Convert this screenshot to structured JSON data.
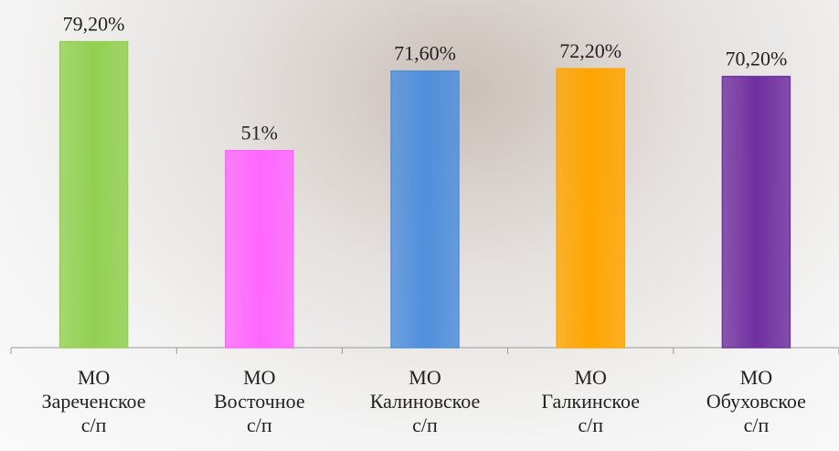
{
  "chart_data": {
    "type": "bar",
    "categories": [
      "МО Зареченское с/п",
      "МО Восточное с/п",
      "МО Калиновское с/п",
      "МО Галкинское с/п",
      "МО Обуховское с/п"
    ],
    "values": [
      79.2,
      51,
      71.6,
      72.2,
      70.2
    ],
    "value_labels": [
      "79,20%",
      "51%",
      "71,60%",
      "72,20%",
      "70,20%"
    ],
    "colors": [
      "#92d050",
      "#ff66ff",
      "#4f8fdc",
      "#ffa500",
      "#7030a0"
    ],
    "ylim": [
      0,
      90
    ]
  }
}
